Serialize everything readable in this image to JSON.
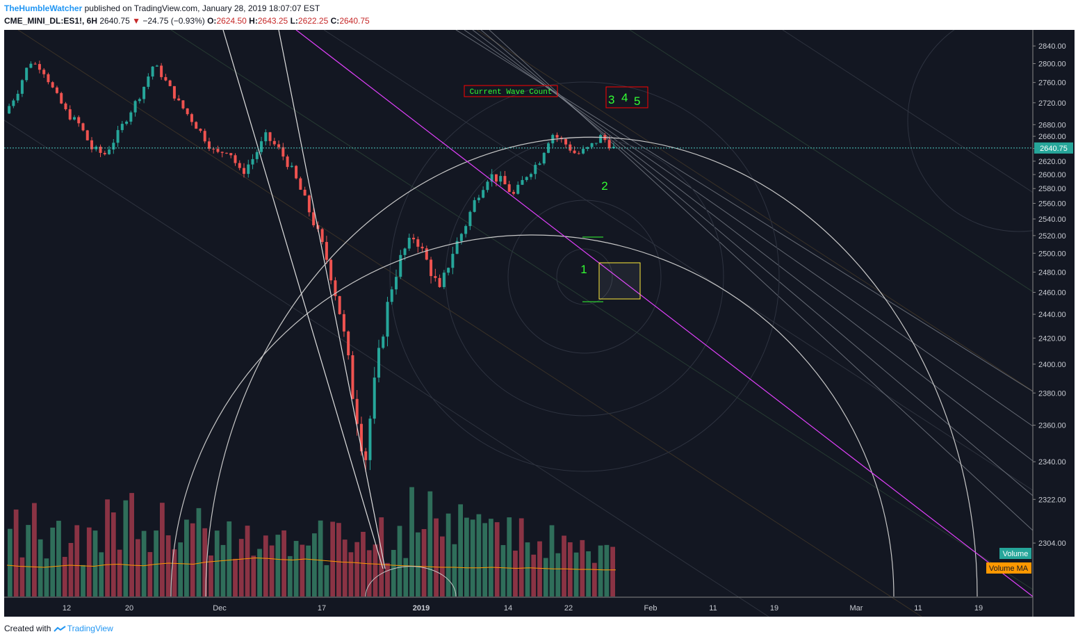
{
  "header": {
    "author": "TheHumbleWatcher",
    "published": "published on TradingView.com, January 28, 2019 18:07:07 EST",
    "symbol": "CME_MINI_DL:ES1!, 6H",
    "last": "2640.75",
    "change": "−24.75 (−0.93%)",
    "o_label": "O:",
    "o_value": "2624.50",
    "h_label": "H:",
    "h_value": "2643.25",
    "l_label": "L:",
    "l_value": "2622.25",
    "c_label": "C:",
    "c_value": "2640.75"
  },
  "footer": {
    "created_with": "Created with",
    "brand": "TradingView"
  },
  "colors": {
    "background": "#131722",
    "up": "#26a69a",
    "down": "#ef5350",
    "up_volume": "#2f6e5a",
    "down_volume": "#8a3344",
    "trendline": "#e040fb",
    "label_green": "#33ff33",
    "box_border": "#ff0000",
    "rect_border": "#ffeb3b",
    "volume_ma": "#ff9800",
    "price_line": "#4ecdc4"
  },
  "annotations": {
    "wave_title": "Current Wave Count",
    "wave_numbers": [
      "3",
      "4",
      "5"
    ],
    "label_1": "1",
    "label_2": "2"
  },
  "chart_data": {
    "type": "candlestick",
    "timeframe": "6H",
    "y_axis_ticks": [
      2840,
      2800,
      2760,
      2720,
      2680,
      2660,
      2640,
      2620,
      2600,
      2580,
      2560,
      2540,
      2520,
      2500,
      2480,
      2460,
      2440,
      2420,
      2400,
      2380,
      2360,
      2340,
      2322,
      2304
    ],
    "x_axis_ticks": [
      "12",
      "20",
      "Dec",
      "17",
      "2019",
      "14",
      "22",
      "Feb",
      "11",
      "19",
      "Mar",
      "11",
      "19"
    ],
    "ylim": [
      2290,
      2855
    ],
    "last_price_label": "2640.75",
    "legend": [
      "Volume",
      "Volume MA"
    ],
    "price_path": [
      2700,
      2740,
      2805,
      2790,
      2740,
      2700,
      2680,
      2640,
      2630,
      2660,
      2700,
      2740,
      2800,
      2760,
      2720,
      2690,
      2660,
      2630,
      2640,
      2600,
      2625,
      2660,
      2640,
      2610,
      2570,
      2530,
      2490,
      2440,
      2380,
      2340,
      2400,
      2460,
      2500,
      2520,
      2490,
      2460,
      2500,
      2530,
      2570,
      2600,
      2590,
      2570,
      2600,
      2620,
      2665,
      2650,
      2630,
      2640,
      2660,
      2640
    ],
    "volume_relative": [
      0.55,
      0.72,
      0.48,
      0.6,
      0.8,
      0.66,
      0.52,
      0.7,
      0.9,
      0.58,
      0.62,
      0.75,
      0.5,
      0.68,
      0.85,
      0.57,
      0.95,
      0.73,
      0.66,
      0.88,
      1.0,
      0.9,
      0.81,
      0.7,
      0.86,
      0.93,
      0.78,
      0.69,
      0.84,
      0.72,
      0.6,
      0.75,
      0.64,
      0.58,
      0.7,
      0.52,
      0.61,
      0.49,
      0.55,
      0.63,
      0.47,
      0.58,
      0.5,
      0.62,
      0.54,
      0.6,
      0.48,
      0.57,
      0.53,
      0.45
    ],
    "volume_ma_relative": [
      0.6,
      0.58,
      0.57,
      0.56,
      0.58,
      0.6,
      0.59,
      0.58,
      0.61,
      0.62,
      0.6,
      0.59,
      0.62,
      0.64,
      0.63,
      0.62,
      0.66,
      0.68,
      0.7,
      0.72,
      0.74,
      0.73,
      0.71,
      0.7,
      0.72,
      0.7,
      0.68,
      0.66,
      0.65,
      0.63,
      0.62,
      0.6,
      0.59,
      0.58,
      0.57,
      0.56,
      0.56,
      0.55,
      0.55,
      0.56,
      0.55,
      0.54,
      0.55,
      0.54,
      0.53,
      0.53,
      0.52,
      0.52,
      0.51,
      0.51
    ]
  }
}
